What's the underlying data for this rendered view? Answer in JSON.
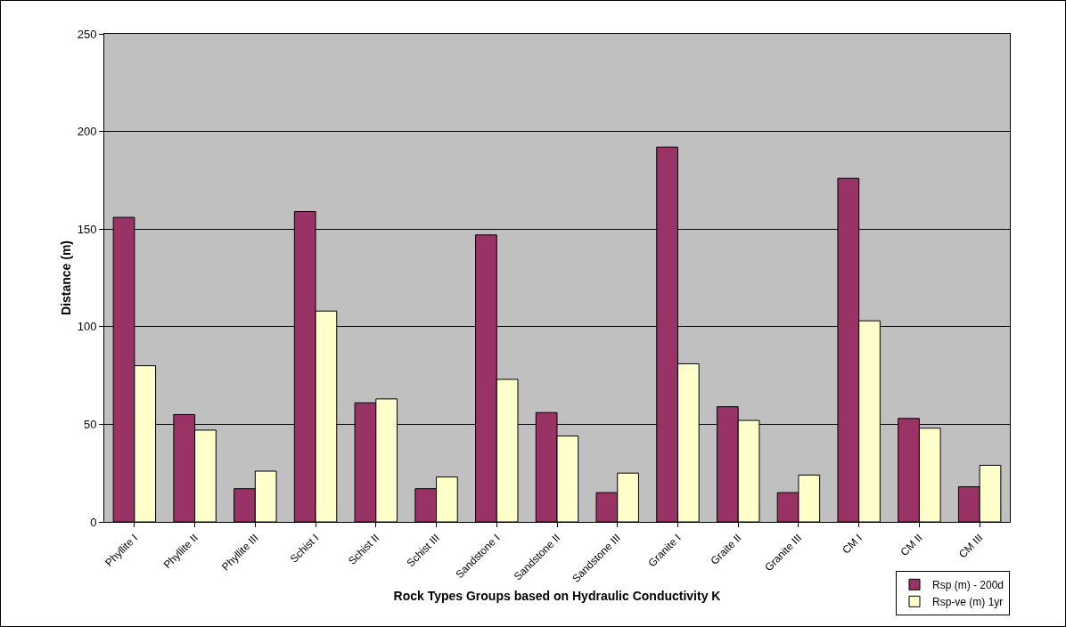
{
  "chart_data": {
    "type": "bar",
    "xlabel": "Rock Types Groups based on Hydraulic Conductivity K",
    "ylabel": "Distance (m)",
    "categories": [
      "Phyllite I",
      "Phyllite II",
      "Phyllite III",
      "Schist I",
      "Schist II",
      "Schist III",
      "Sandstone I",
      "Sandstone II",
      "Sandstone III",
      "Granite I",
      "Graite II",
      "Granite III",
      "CM I",
      "CM II",
      "CM III"
    ],
    "series": [
      {
        "name": "Rsp (m) - 200d",
        "color": "#993366",
        "values": [
          156,
          55,
          17,
          159,
          61,
          17,
          147,
          56,
          15,
          192,
          59,
          15,
          176,
          53,
          18
        ]
      },
      {
        "name": "Rsp-ve (m) 1yr",
        "color": "#ffffcc",
        "values": [
          80,
          47,
          26,
          108,
          63,
          23,
          73,
          44,
          25,
          81,
          52,
          24,
          103,
          48,
          29
        ]
      }
    ],
    "ylim": [
      0,
      250
    ],
    "yticks": [
      0,
      50,
      100,
      150,
      200,
      250
    ],
    "grid": "y",
    "legend": "bottom right"
  }
}
